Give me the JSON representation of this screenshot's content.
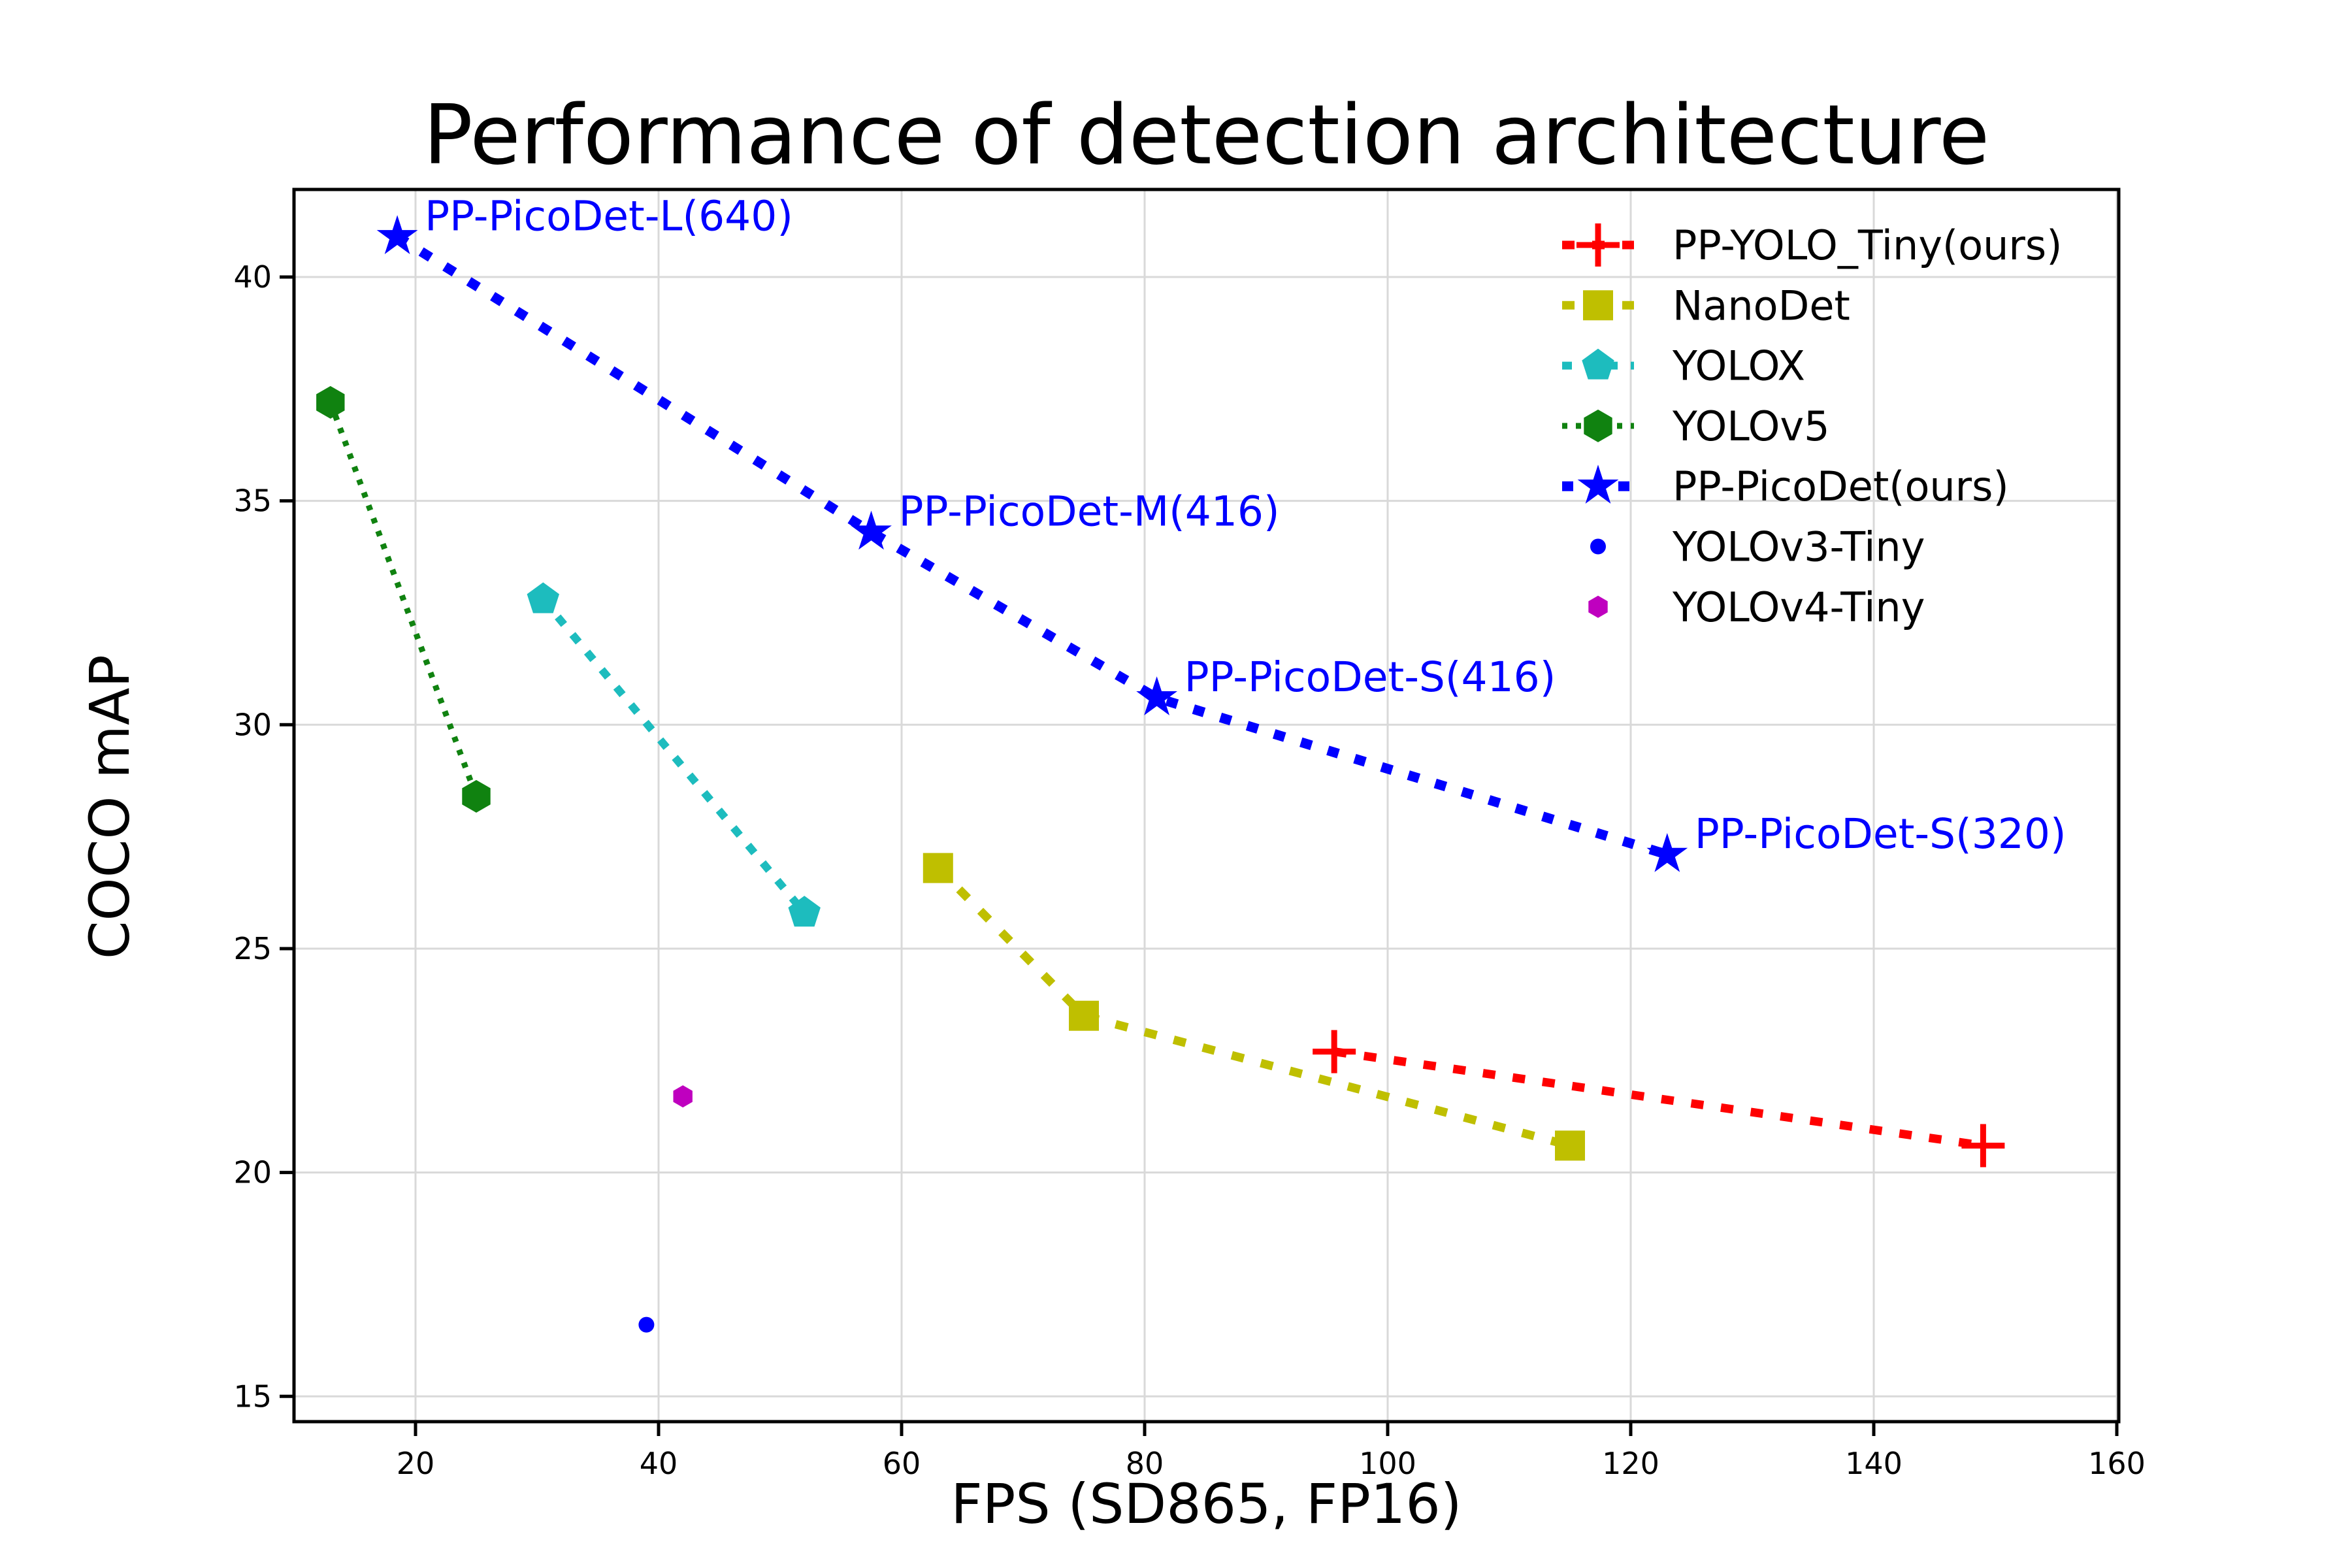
{
  "chart_data": {
    "type": "line",
    "title": "Performance of detection architecture",
    "xlabel": "FPS (SD865, FP16)",
    "ylabel": "COCO mAP",
    "xlim": [
      10,
      160
    ],
    "ylim": [
      14.4,
      42.0
    ],
    "x_ticks": [
      20,
      40,
      60,
      80,
      100,
      120,
      140,
      160
    ],
    "y_ticks": [
      15,
      20,
      25,
      30,
      35,
      40
    ],
    "grid": true,
    "legend_position": "upper right",
    "grid_color": "#d9d9d9",
    "spine_color": "#000000",
    "annotation_color": "#0000ff",
    "series": [
      {
        "name": "PP-YOLO_Tiny(ours)",
        "color": "#ff0000",
        "marker": "plus",
        "marker_size": 33,
        "line": "dashed",
        "dash": "19 27",
        "line_width": 13,
        "points": [
          [
            95.6,
            22.7
          ],
          [
            149,
            20.6
          ]
        ]
      },
      {
        "name": "NanoDet",
        "color": "#bfbf00",
        "marker": "square",
        "marker_size": 23,
        "line": "dashed",
        "dash": "19 27",
        "line_width": 13,
        "points": [
          [
            63,
            26.8
          ],
          [
            75,
            23.5
          ],
          [
            115,
            20.6
          ]
        ]
      },
      {
        "name": "YOLOX",
        "color": "#1dbcbe",
        "marker": "pentagon",
        "marker_size": 26,
        "line": "dashed",
        "dash": "15 20",
        "line_width": 12,
        "points": [
          [
            30.5,
            32.8
          ],
          [
            52,
            25.8
          ]
        ]
      },
      {
        "name": "YOLOv5",
        "color": "#108210",
        "marker": "hexagon",
        "marker_size": 25,
        "line": "dotted",
        "dash": "8 13",
        "line_width": 9,
        "points": [
          [
            13,
            37.2
          ],
          [
            25,
            28.4
          ]
        ]
      },
      {
        "name": "PP-PicoDet(ours)",
        "color": "#0000ff",
        "marker": "star",
        "marker_size": 33,
        "line": "dashed",
        "dash": "17 26",
        "line_width": 15,
        "points": [
          [
            18.5,
            40.9
          ],
          [
            57.5,
            34.3
          ],
          [
            81,
            30.6
          ],
          [
            123,
            27.1
          ]
        ]
      },
      {
        "name": "YOLOv3-Tiny",
        "color": "#0000ff",
        "marker": "circle",
        "marker_size": 12,
        "line": "none",
        "points": [
          [
            39,
            16.6
          ]
        ]
      },
      {
        "name": "YOLOv4-Tiny",
        "color": "#bf00bf",
        "marker": "hexagon",
        "marker_size": 17,
        "line": "none",
        "points": [
          [
            42,
            21.7
          ]
        ]
      }
    ],
    "annotations": [
      {
        "text": "PP-PicoDet-L(640)",
        "x": 18.5,
        "y": 40.9
      },
      {
        "text": "PP-PicoDet-M(416)",
        "x": 57.5,
        "y": 34.3
      },
      {
        "text": "PP-PicoDet-S(416)",
        "x": 81,
        "y": 30.6
      },
      {
        "text": "PP-PicoDet-S(320)",
        "x": 123,
        "y": 27.1
      }
    ]
  }
}
